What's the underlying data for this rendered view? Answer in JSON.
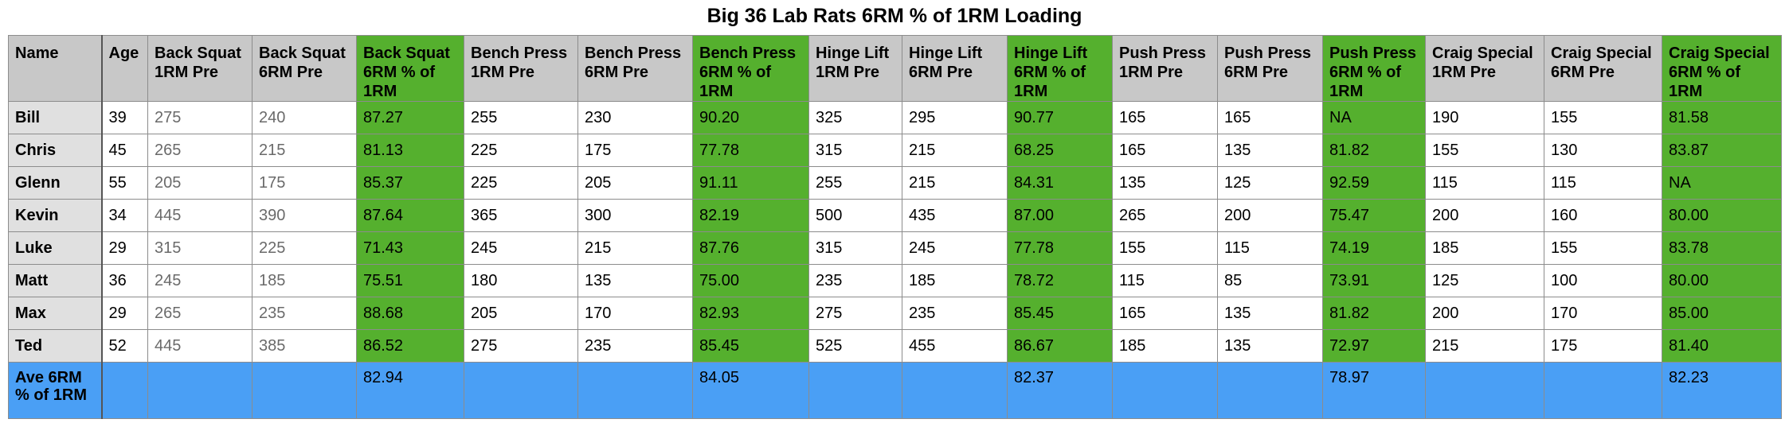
{
  "title": "Big 36 Lab Rats 6RM % of 1RM Loading",
  "chart_data": {
    "type": "table",
    "title": "Big 36 Lab Rats 6RM % of 1RM Loading",
    "columns": [
      "Name",
      "Age",
      "Back Squat 1RM Pre",
      "Back Squat 6RM Pre",
      "Back Squat 6RM % of 1RM",
      "Bench Press 1RM Pre",
      "Bench Press 6RM Pre",
      "Bench Press 6RM % of 1RM",
      "Hinge Lift 1RM Pre",
      "Hinge Lift 6RM Pre",
      "Hinge Lift 6RM % of 1RM",
      "Push Press 1RM Pre",
      "Push Press 6RM Pre",
      "Push Press 6RM % of 1RM",
      "Craig Special 1RM Pre",
      "Craig Special 6RM Pre",
      "Craig Special 6RM % of 1RM"
    ],
    "highlight_columns": [
      4,
      7,
      10,
      13,
      16
    ],
    "gray_text_columns": [
      2,
      3
    ],
    "highlight_color": "#55b02e",
    "header_color": "#c8c8c8",
    "average_row_color": "#4a9ff5",
    "rows": [
      [
        "Bill",
        "39",
        "275",
        "240",
        "87.27",
        "255",
        "230",
        "90.20",
        "325",
        "295",
        "90.77",
        "165",
        "165",
        "NA",
        "190",
        "155",
        "81.58"
      ],
      [
        "Chris",
        "45",
        "265",
        "215",
        "81.13",
        "225",
        "175",
        "77.78",
        "315",
        "215",
        "68.25",
        "165",
        "135",
        "81.82",
        "155",
        "130",
        "83.87"
      ],
      [
        "Glenn",
        "55",
        "205",
        "175",
        "85.37",
        "225",
        "205",
        "91.11",
        "255",
        "215",
        "84.31",
        "135",
        "125",
        "92.59",
        "115",
        "115",
        "NA"
      ],
      [
        "Kevin",
        "34",
        "445",
        "390",
        "87.64",
        "365",
        "300",
        "82.19",
        "500",
        "435",
        "87.00",
        "265",
        "200",
        "75.47",
        "200",
        "160",
        "80.00"
      ],
      [
        "Luke",
        "29",
        "315",
        "225",
        "71.43",
        "245",
        "215",
        "87.76",
        "315",
        "245",
        "77.78",
        "155",
        "115",
        "74.19",
        "185",
        "155",
        "83.78"
      ],
      [
        "Matt",
        "36",
        "245",
        "185",
        "75.51",
        "180",
        "135",
        "75.00",
        "235",
        "185",
        "78.72",
        "115",
        "85",
        "73.91",
        "125",
        "100",
        "80.00"
      ],
      [
        "Max",
        "29",
        "265",
        "235",
        "88.68",
        "205",
        "170",
        "82.93",
        "275",
        "235",
        "85.45",
        "165",
        "135",
        "81.82",
        "200",
        "170",
        "85.00"
      ],
      [
        "Ted",
        "52",
        "445",
        "385",
        "86.52",
        "275",
        "235",
        "85.45",
        "525",
        "455",
        "86.67",
        "185",
        "135",
        "72.97",
        "215",
        "175",
        "81.40"
      ]
    ],
    "average_row": [
      "Ave 6RM %  of 1RM",
      "",
      "",
      "",
      "82.94",
      "",
      "",
      "84.05",
      "",
      "",
      "82.37",
      "",
      "",
      "78.97",
      "",
      "",
      "82.23"
    ]
  }
}
